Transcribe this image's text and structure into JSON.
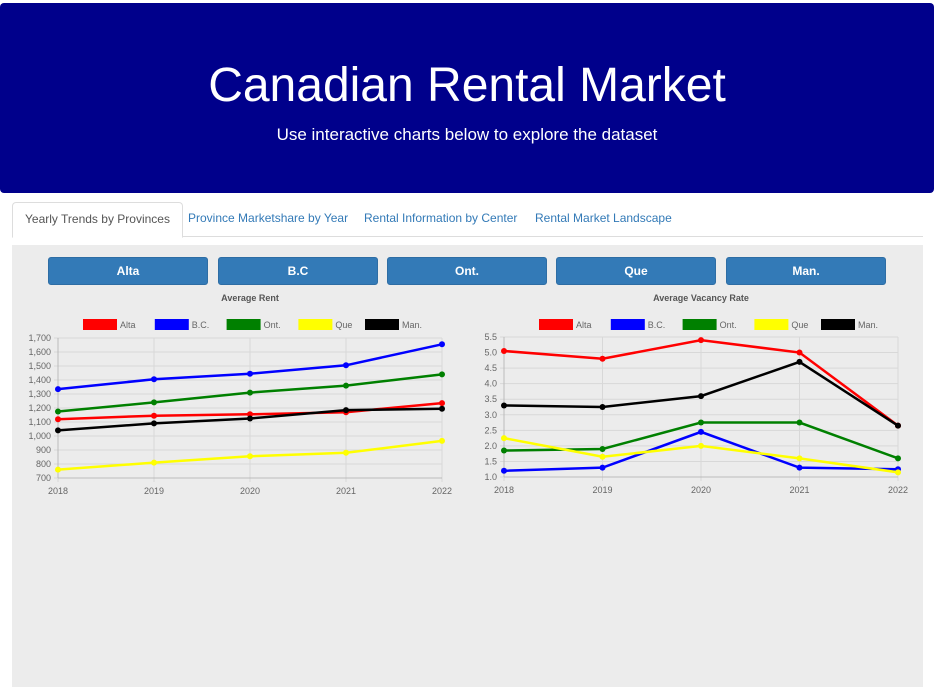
{
  "header": {
    "title": "Canadian Rental Market",
    "subtitle": "Use interactive charts below to explore the dataset"
  },
  "tabs": [
    {
      "label": "Yearly Trends by Provinces",
      "active": true
    },
    {
      "label": "Province Marketshare by Year",
      "active": false
    },
    {
      "label": "Rental Information by Center",
      "active": false
    },
    {
      "label": "Rental Market Landscape",
      "active": false
    }
  ],
  "buttons": [
    "Alta",
    "B.C",
    "Ont.",
    "Que",
    "Man."
  ],
  "colors": {
    "header_bg": "#00008b",
    "button": "#337ab7",
    "panel": "#ececec"
  },
  "chart_data": [
    {
      "type": "line",
      "title": "Average Rent",
      "categories": [
        "2018",
        "2019",
        "2020",
        "2021",
        "2022"
      ],
      "ylim": [
        700,
        1700
      ],
      "yticks": [
        "700",
        "800",
        "900",
        "1,000",
        "1,100",
        "1,200",
        "1,300",
        "1,400",
        "1,500",
        "1,600",
        "1,700"
      ],
      "grid": true,
      "legend": "top",
      "series": [
        {
          "name": "Alta",
          "color": "#ff0000",
          "values": [
            1120,
            1145,
            1155,
            1170,
            1235
          ]
        },
        {
          "name": "B.C.",
          "color": "#0000ff",
          "values": [
            1335,
            1405,
            1445,
            1505,
            1655
          ]
        },
        {
          "name": "Ont.",
          "color": "#008000",
          "values": [
            1175,
            1240,
            1310,
            1360,
            1440
          ]
        },
        {
          "name": "Que",
          "color": "#ffff00",
          "values": [
            760,
            810,
            855,
            880,
            965
          ]
        },
        {
          "name": "Man.",
          "color": "#000000",
          "values": [
            1040,
            1090,
            1125,
            1185,
            1195
          ]
        }
      ]
    },
    {
      "type": "line",
      "title": "Average Vacancy Rate",
      "categories": [
        "2018",
        "2019",
        "2020",
        "2021",
        "2022"
      ],
      "ylim": [
        1.0,
        5.5
      ],
      "yticks": [
        "1.0",
        "1.5",
        "2.0",
        "2.5",
        "3.0",
        "3.5",
        "4.0",
        "4.5",
        "5.0",
        "5.5"
      ],
      "grid": true,
      "legend": "top",
      "series": [
        {
          "name": "Alta",
          "color": "#ff0000",
          "values": [
            5.05,
            4.8,
            5.4,
            5.0,
            2.65
          ]
        },
        {
          "name": "B.C.",
          "color": "#0000ff",
          "values": [
            1.2,
            1.3,
            2.45,
            1.3,
            1.25
          ]
        },
        {
          "name": "Ont.",
          "color": "#008000",
          "values": [
            1.85,
            1.9,
            2.75,
            2.75,
            1.6
          ]
        },
        {
          "name": "Que",
          "color": "#ffff00",
          "values": [
            2.25,
            1.65,
            2.0,
            1.6,
            1.15
          ]
        },
        {
          "name": "Man.",
          "color": "#000000",
          "values": [
            3.3,
            3.25,
            3.6,
            4.7,
            2.65
          ]
        }
      ]
    }
  ]
}
